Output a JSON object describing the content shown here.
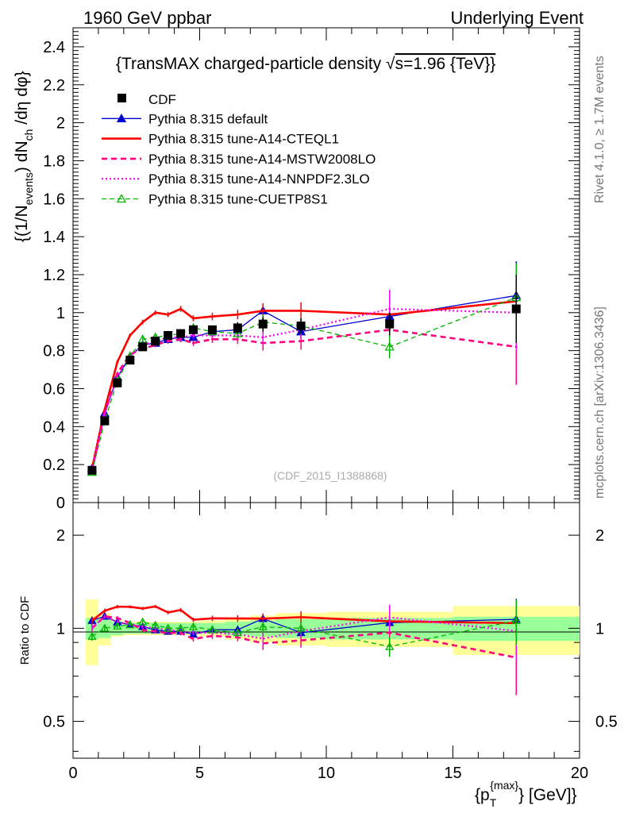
{
  "header": {
    "left": "1960 GeV ppbar",
    "right": "Underlying Event"
  },
  "side": {
    "rivet": "Rivet 4.1.0, ≥ 1.7M events",
    "mcplots": "mcplots.cern.ch [arXiv:1306.3436]"
  },
  "chart_data": {
    "type": "line",
    "title": "{TransMAX charged-particle density √s=1.96 {TeV}}",
    "title_pre": "{TransMAX charged-particle density ",
    "title_sqrt": "√",
    "title_post": "s=1.96 {TeV}}",
    "ylabel": "{(1/N_events) dN_ch /dη dφ}",
    "ylabel_a": "{(1/N",
    "ylabel_sub1": "events",
    "ylabel_b": ") dN",
    "ylabel_sub2": "ch",
    "ylabel_c": " /dη  dφ}",
    "xlabel": "{p_T^{max}} [GeV]}",
    "xlabel_a": "{p",
    "xlabel_sub": "T",
    "xlabel_sup": "{max}",
    "xlabel_b": "} [GeV]}",
    "ratio_ylabel": "Ratio to CDF",
    "watermark": "(CDF_2015_I1388868)",
    "xlim": [
      0,
      20
    ],
    "ylim": [
      0,
      2.5
    ],
    "ratio_ylim": [
      0.38,
      2.55
    ],
    "x_ticks": [
      "0",
      "5",
      "10",
      "15",
      "20"
    ],
    "y_ticks": [
      "0",
      "0.2",
      "0.4",
      "0.6",
      "0.8",
      "1",
      "1.2",
      "1.4",
      "1.6",
      "1.8",
      "2",
      "2.2",
      "2.4"
    ],
    "ratio_ticks": [
      "0.5",
      "1",
      "2"
    ],
    "x": [
      0.75,
      1.25,
      1.75,
      2.25,
      2.75,
      3.25,
      3.75,
      4.25,
      4.75,
      5.5,
      6.5,
      7.5,
      9.0,
      12.5,
      17.5
    ],
    "x_bins": [
      [
        0.5,
        1.0
      ],
      [
        1.0,
        1.5
      ],
      [
        1.5,
        2.0
      ],
      [
        2.0,
        2.5
      ],
      [
        2.5,
        3.0
      ],
      [
        3.0,
        3.5
      ],
      [
        3.5,
        4.0
      ],
      [
        4.0,
        4.5
      ],
      [
        4.5,
        5.0
      ],
      [
        5.0,
        6.0
      ],
      [
        6.0,
        7.0
      ],
      [
        7.0,
        8.0
      ],
      [
        8.0,
        10.0
      ],
      [
        10.0,
        15.0
      ],
      [
        15.0,
        20.0
      ]
    ],
    "data": {
      "name": "CDF",
      "values": [
        0.17,
        0.43,
        0.63,
        0.75,
        0.82,
        0.85,
        0.88,
        0.89,
        0.91,
        0.91,
        0.92,
        0.94,
        0.93,
        0.94,
        1.02
      ],
      "errors": [
        0.015,
        0.02,
        0.02,
        0.02,
        0.02,
        0.02,
        0.02,
        0.02,
        0.02,
        0.02,
        0.03,
        0.04,
        0.04,
        0.06,
        0.18
      ],
      "ratio_band_stat": [
        0.08,
        0.07,
        0.05,
        0.04,
        0.04,
        0.04,
        0.04,
        0.04,
        0.04,
        0.04,
        0.05,
        0.06,
        0.07,
        0.08,
        0.09
      ],
      "ratio_band_total": [
        0.24,
        0.12,
        0.06,
        0.05,
        0.05,
        0.05,
        0.05,
        0.05,
        0.05,
        0.06,
        0.08,
        0.1,
        0.12,
        0.13,
        0.18
      ]
    },
    "series": [
      {
        "name": "Pythia 8.315 default",
        "color": "#0000cc",
        "dash": "",
        "marker": "triangle",
        "values": [
          0.18,
          0.47,
          0.66,
          0.77,
          0.83,
          0.84,
          0.86,
          0.87,
          0.87,
          0.9,
          0.91,
          1.01,
          0.9,
          0.98,
          1.09
        ],
        "errors": [
          0.005,
          0.008,
          0.01,
          0.01,
          0.01,
          0.01,
          0.012,
          0.012,
          0.015,
          0.015,
          0.02,
          0.03,
          0.035,
          0.06,
          0.18
        ]
      },
      {
        "name": "Pythia 8.315 tune-A14-CTEQL1",
        "color": "#ff0000",
        "dash": "",
        "marker": "none",
        "width": 2.6,
        "values": [
          0.18,
          0.49,
          0.74,
          0.88,
          0.95,
          1.0,
          0.99,
          1.02,
          0.97,
          0.98,
          0.99,
          1.01,
          1.01,
          0.99,
          1.06
        ],
        "errors": [
          0.005,
          0.008,
          0.01,
          0.01,
          0.012,
          0.012,
          0.014,
          0.016,
          0.016,
          0.02,
          0.025,
          0.04,
          0.045,
          0.07,
          0.2
        ]
      },
      {
        "name": "Pythia 8.315 tune-A14-MSTW2008LO",
        "color": "#ff0080",
        "dash": "7,5",
        "marker": "none",
        "width": 2.6,
        "values": [
          0.17,
          0.47,
          0.68,
          0.78,
          0.81,
          0.83,
          0.85,
          0.86,
          0.84,
          0.86,
          0.86,
          0.84,
          0.85,
          0.91,
          0.82
        ],
        "errors": [
          0.005,
          0.008,
          0.01,
          0.01,
          0.012,
          0.012,
          0.014,
          0.016,
          0.016,
          0.02,
          0.025,
          0.04,
          0.045,
          0.07,
          0.2
        ]
      },
      {
        "name": "Pythia 8.315 tune-A14-NNPDF2.3LO",
        "color": "#ff00ff",
        "dash": "2,3",
        "marker": "none",
        "width": 2.2,
        "values": [
          0.17,
          0.47,
          0.66,
          0.77,
          0.83,
          0.85,
          0.87,
          0.87,
          0.88,
          0.88,
          0.88,
          0.87,
          0.91,
          1.02,
          1.0
        ],
        "errors": [
          0.005,
          0.008,
          0.01,
          0.01,
          0.012,
          0.012,
          0.014,
          0.016,
          0.016,
          0.02,
          0.025,
          0.04,
          0.045,
          0.1,
          0.2
        ]
      },
      {
        "name": "Pythia 8.315 tune-CUETP8S1",
        "color": "#00b400",
        "dash": "6,4",
        "marker": "open-triangle",
        "values": [
          0.16,
          0.43,
          0.64,
          0.77,
          0.86,
          0.87,
          0.88,
          0.89,
          0.92,
          0.9,
          0.89,
          0.95,
          0.93,
          0.82,
          1.08
        ],
        "errors": [
          0.005,
          0.008,
          0.01,
          0.01,
          0.012,
          0.012,
          0.014,
          0.016,
          0.016,
          0.02,
          0.025,
          0.04,
          0.045,
          0.06,
          0.18
        ]
      }
    ]
  }
}
